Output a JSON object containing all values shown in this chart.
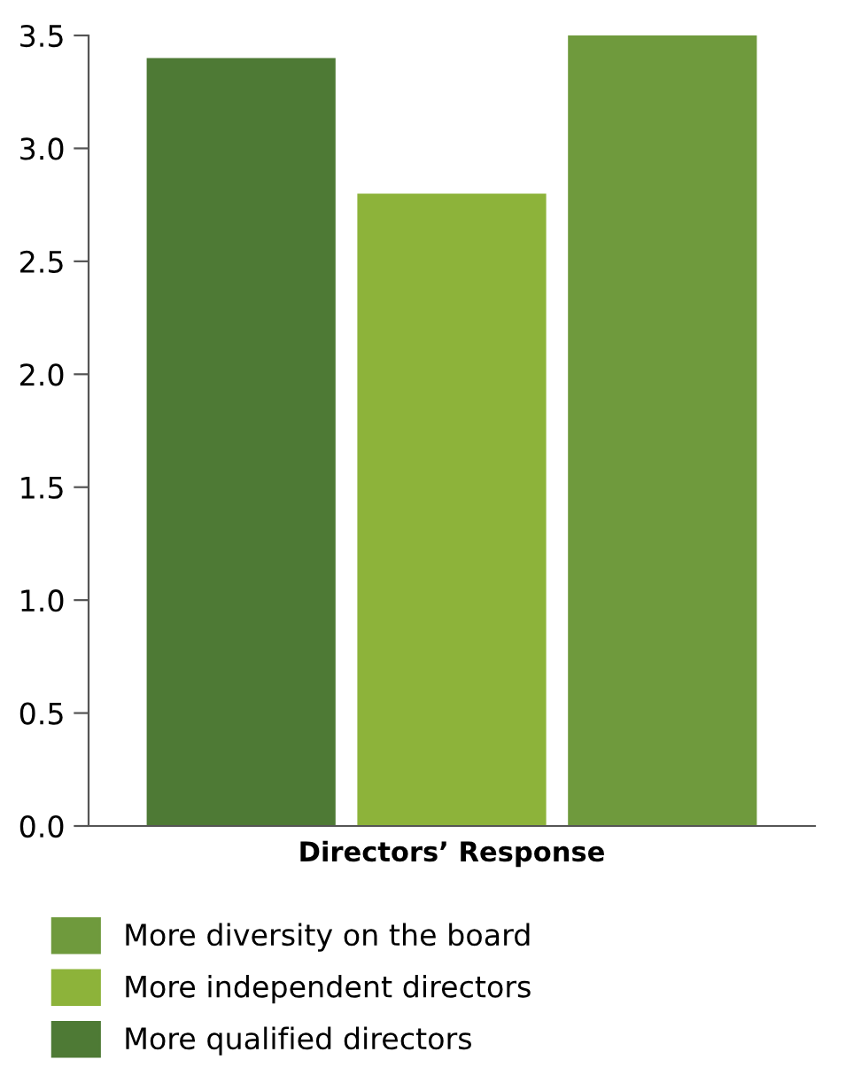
{
  "chart_data": {
    "type": "bar",
    "categories": [
      "Directors’ Response"
    ],
    "series": [
      {
        "name": "More qualified directors",
        "color": "#4e7a35",
        "values": [
          3.4
        ]
      },
      {
        "name": "More independent directors",
        "color": "#8db33a",
        "values": [
          2.8
        ]
      },
      {
        "name": "More diversity on the board",
        "color": "#6f9a3d",
        "values": [
          3.5
        ]
      }
    ],
    "ylim": [
      0,
      3.5
    ],
    "yticks": [
      {
        "value": 0,
        "label": "0.0"
      },
      {
        "value": 0.5,
        "label": "0.5"
      },
      {
        "value": 1,
        "label": "1.0"
      },
      {
        "value": 1.5,
        "label": "1.5"
      },
      {
        "value": 2,
        "label": "2.0"
      },
      {
        "value": 2.5,
        "label": "2.5"
      },
      {
        "value": 3,
        "label": "3.0"
      },
      {
        "value": 3.5,
        "label": "3.5"
      }
    ],
    "grid": false,
    "legend": "bottom"
  }
}
